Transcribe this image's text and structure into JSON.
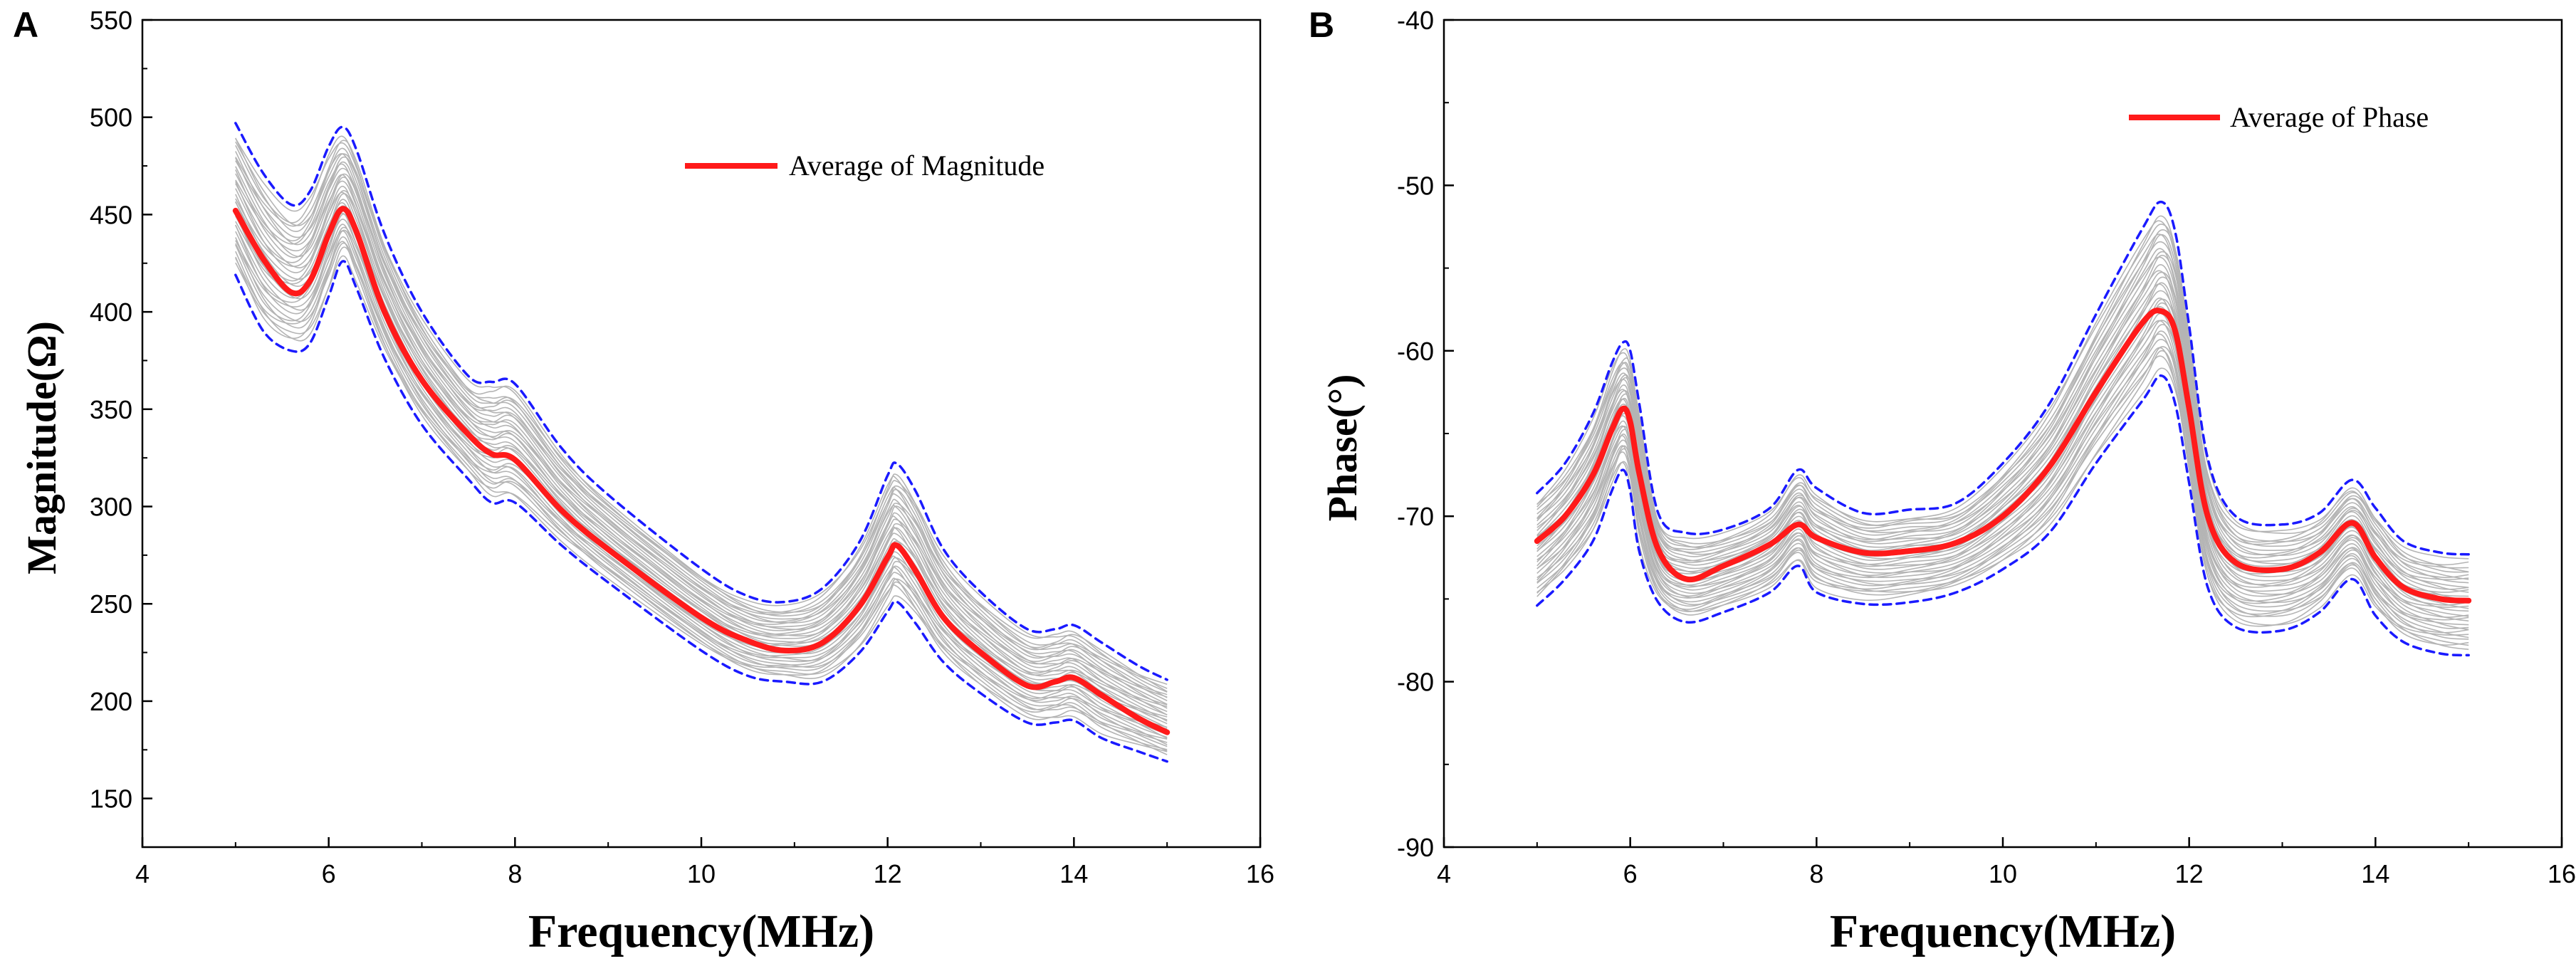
{
  "chart_data": [
    {
      "type": "line",
      "panel_label": "A",
      "xlabel": "Frequency(MHz)",
      "ylabel": "Magnitude(Ω)",
      "xlim": [
        4,
        16
      ],
      "ylim": [
        125,
        550
      ],
      "x_ticks": [
        4,
        6,
        8,
        10,
        12,
        14,
        16
      ],
      "y_ticks": [
        150,
        200,
        250,
        300,
        350,
        400,
        450,
        500,
        550
      ],
      "legend": {
        "position": "top-right",
        "entries": [
          "Average of Magnitude"
        ]
      },
      "x": [
        5.0,
        5.3,
        5.6,
        5.8,
        6.0,
        6.15,
        6.3,
        6.6,
        7.0,
        7.5,
        7.75,
        8.0,
        8.5,
        9.0,
        10.0,
        10.5,
        10.9,
        11.3,
        11.7,
        12.0,
        12.1,
        12.3,
        12.6,
        13.0,
        13.5,
        13.8,
        14.0,
        14.3,
        14.7,
        15.0
      ],
      "series": [
        {
          "name": "Average of Magnitude",
          "color": "#ff1a1a",
          "values": [
            452,
            427,
            410,
            416,
            440,
            453,
            441,
            400,
            365,
            337,
            327,
            324,
            298,
            278,
            243,
            231,
            226,
            230,
            249,
            274,
            280,
            267,
            243,
            225,
            208,
            210,
            212,
            203,
            191,
            184
          ]
        },
        {
          "name": "Upper bound",
          "color": "#1a1aff",
          "dash": true,
          "values": [
            497,
            471,
            455,
            462,
            485,
            495,
            483,
            440,
            400,
            367,
            364,
            363,
            330,
            306,
            268,
            254,
            251,
            258,
            282,
            316,
            322,
            308,
            278,
            256,
            237,
            237,
            239,
            230,
            218,
            211
          ]
        },
        {
          "name": "Lower bound",
          "color": "#1a1aff",
          "dash": true,
          "values": [
            419,
            390,
            380,
            384,
            408,
            426,
            412,
            376,
            342,
            314,
            302,
            302,
            280,
            261,
            226,
            213,
            210,
            210,
            225,
            246,
            251,
            240,
            220,
            204,
            189,
            189,
            190,
            181,
            174,
            169
          ]
        }
      ]
    },
    {
      "type": "line",
      "panel_label": "B",
      "xlabel": "Frequency(MHz)",
      "ylabel": "Phase(°)",
      "xlim": [
        4,
        16
      ],
      "ylim": [
        -90,
        -40
      ],
      "x_ticks": [
        4,
        6,
        8,
        10,
        12,
        14,
        16
      ],
      "y_ticks": [
        -90,
        -80,
        -70,
        -60,
        -50,
        -40
      ],
      "legend": {
        "position": "top-right",
        "entries": [
          "Average of Phase"
        ]
      },
      "x": [
        5.0,
        5.3,
        5.6,
        5.8,
        5.92,
        6.0,
        6.1,
        6.3,
        6.6,
        7.0,
        7.5,
        7.8,
        8.0,
        8.5,
        9.0,
        9.5,
        10.0,
        10.5,
        11.0,
        11.5,
        11.7,
        11.85,
        12.0,
        12.2,
        12.5,
        13.0,
        13.4,
        13.75,
        14.0,
        14.3,
        14.7,
        15.0
      ],
      "series": [
        {
          "name": "Average of Phase",
          "color": "#ff1a1a",
          "values": [
            -71.5,
            -70.0,
            -67.5,
            -64.8,
            -63.5,
            -64.3,
            -67.5,
            -72.0,
            -73.8,
            -73.0,
            -71.7,
            -70.5,
            -71.3,
            -72.2,
            -72.1,
            -71.6,
            -70.0,
            -67.0,
            -62.5,
            -58.3,
            -57.6,
            -58.8,
            -63.5,
            -70.0,
            -72.8,
            -73.2,
            -72.2,
            -70.4,
            -72.5,
            -74.3,
            -75.0,
            -75.1
          ]
        },
        {
          "name": "Upper bound",
          "color": "#1a1aff",
          "dash": true,
          "values": [
            -68.6,
            -66.8,
            -63.8,
            -60.8,
            -59.5,
            -60.0,
            -63.3,
            -69.8,
            -71.0,
            -70.8,
            -69.5,
            -67.2,
            -68.3,
            -69.8,
            -69.6,
            -69.2,
            -66.8,
            -63.2,
            -57.8,
            -52.6,
            -51.0,
            -52.8,
            -58.5,
            -66.5,
            -70.0,
            -70.5,
            -69.8,
            -67.8,
            -69.5,
            -71.5,
            -72.2,
            -72.3
          ]
        },
        {
          "name": "Lower bound",
          "color": "#1a1aff",
          "dash": true,
          "values": [
            -75.4,
            -73.8,
            -71.5,
            -68.5,
            -67.2,
            -68.5,
            -72.2,
            -75.2,
            -76.4,
            -75.8,
            -74.6,
            -73.0,
            -74.6,
            -75.3,
            -75.2,
            -74.6,
            -73.2,
            -71.0,
            -66.8,
            -63.0,
            -61.5,
            -63.2,
            -68.0,
            -74.3,
            -76.7,
            -76.9,
            -75.8,
            -73.8,
            -76.0,
            -77.6,
            -78.3,
            -78.4
          ]
        }
      ]
    }
  ]
}
